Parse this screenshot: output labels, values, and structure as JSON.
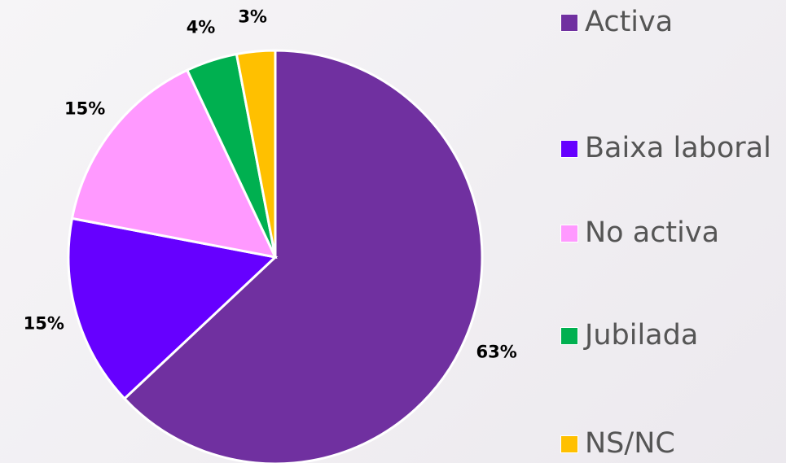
{
  "chart_data": {
    "type": "pie",
    "categories": [
      "Activa",
      "Baixa laboral",
      "No activa",
      "Jubilada",
      "NS/NC"
    ],
    "values": [
      63,
      15,
      15,
      4,
      3
    ],
    "value_labels": [
      "63%",
      "15%",
      "15%",
      "4%",
      "3%"
    ],
    "colors": [
      "#7030a0",
      "#6600ff",
      "#ff99ff",
      "#00b050",
      "#ffc000"
    ],
    "legend": "right"
  }
}
